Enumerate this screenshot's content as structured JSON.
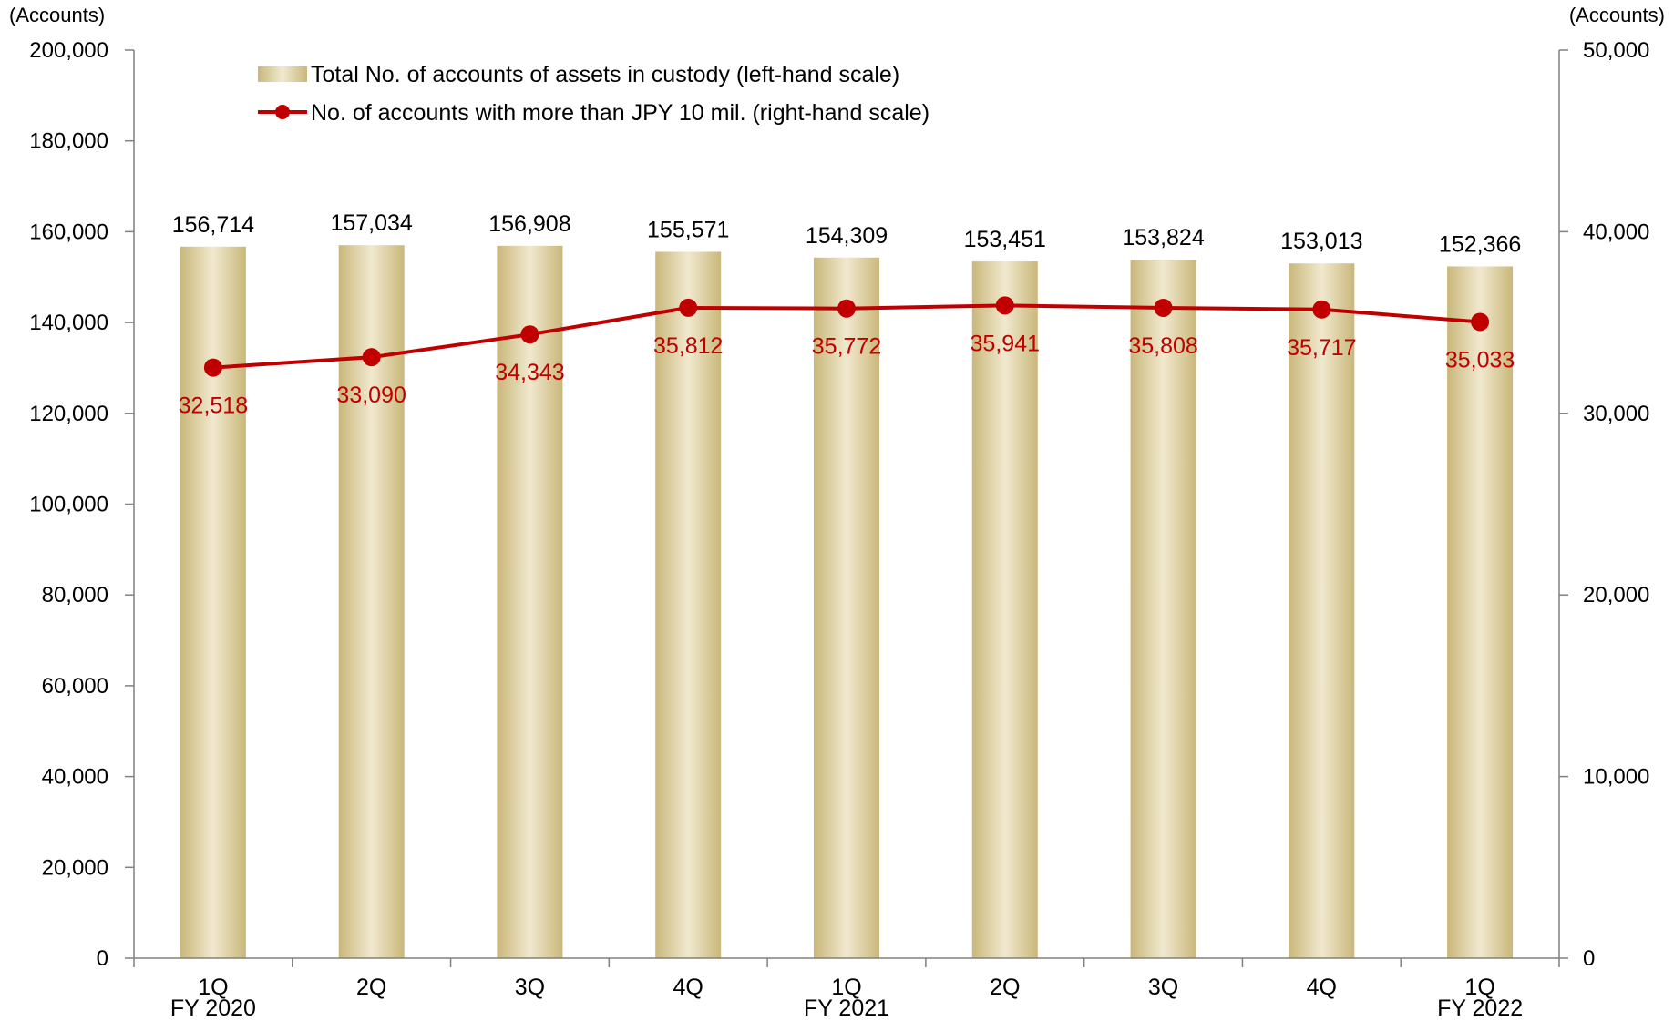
{
  "chart_data": {
    "type": "bar+line",
    "categories": [
      "1Q",
      "2Q",
      "3Q",
      "4Q",
      "1Q",
      "2Q",
      "3Q",
      "4Q",
      "1Q"
    ],
    "category_groups": [
      "FY 2020",
      "",
      "",
      "",
      "FY 2021",
      "",
      "",
      "",
      "FY 2022"
    ],
    "left_axis": {
      "unit": "(Accounts)",
      "ylim": [
        0,
        200000
      ],
      "ticks": [
        0,
        20000,
        40000,
        60000,
        80000,
        100000,
        120000,
        140000,
        160000,
        180000,
        200000
      ],
      "tick_labels": [
        "0",
        "20,000",
        "40,000",
        "60,000",
        "80,000",
        "100,000",
        "120,000",
        "140,000",
        "160,000",
        "180,000",
        "200,000"
      ]
    },
    "right_axis": {
      "unit": "(Accounts)",
      "ylim": [
        0,
        50000
      ],
      "ticks": [
        0,
        10000,
        20000,
        30000,
        40000,
        50000
      ],
      "tick_labels": [
        "0",
        "10,000",
        "20,000",
        "30,000",
        "40,000",
        "50,000"
      ]
    },
    "series": [
      {
        "name": "Total No. of accounts of assets in custody (left-hand scale)",
        "type": "bar",
        "axis": "left",
        "values": [
          156714,
          157034,
          156908,
          155571,
          154309,
          153451,
          153824,
          153013,
          152366
        ],
        "labels": [
          "156,714",
          "157,034",
          "156,908",
          "155,571",
          "154,309",
          "153,451",
          "153,824",
          "153,013",
          "152,366"
        ],
        "color": "#D4C389"
      },
      {
        "name": "No. of accounts with more than JPY 10 mil. (right-hand scale)",
        "type": "line",
        "axis": "right",
        "values": [
          32518,
          33090,
          34343,
          35812,
          35772,
          35941,
          35808,
          35717,
          35033
        ],
        "labels": [
          "32,518",
          "33,090",
          "34,343",
          "35,812",
          "35,772",
          "35,941",
          "35,808",
          "35,717",
          "35,033"
        ],
        "color": "#C00000"
      }
    ],
    "legend_position": "top-left",
    "grid": false
  }
}
